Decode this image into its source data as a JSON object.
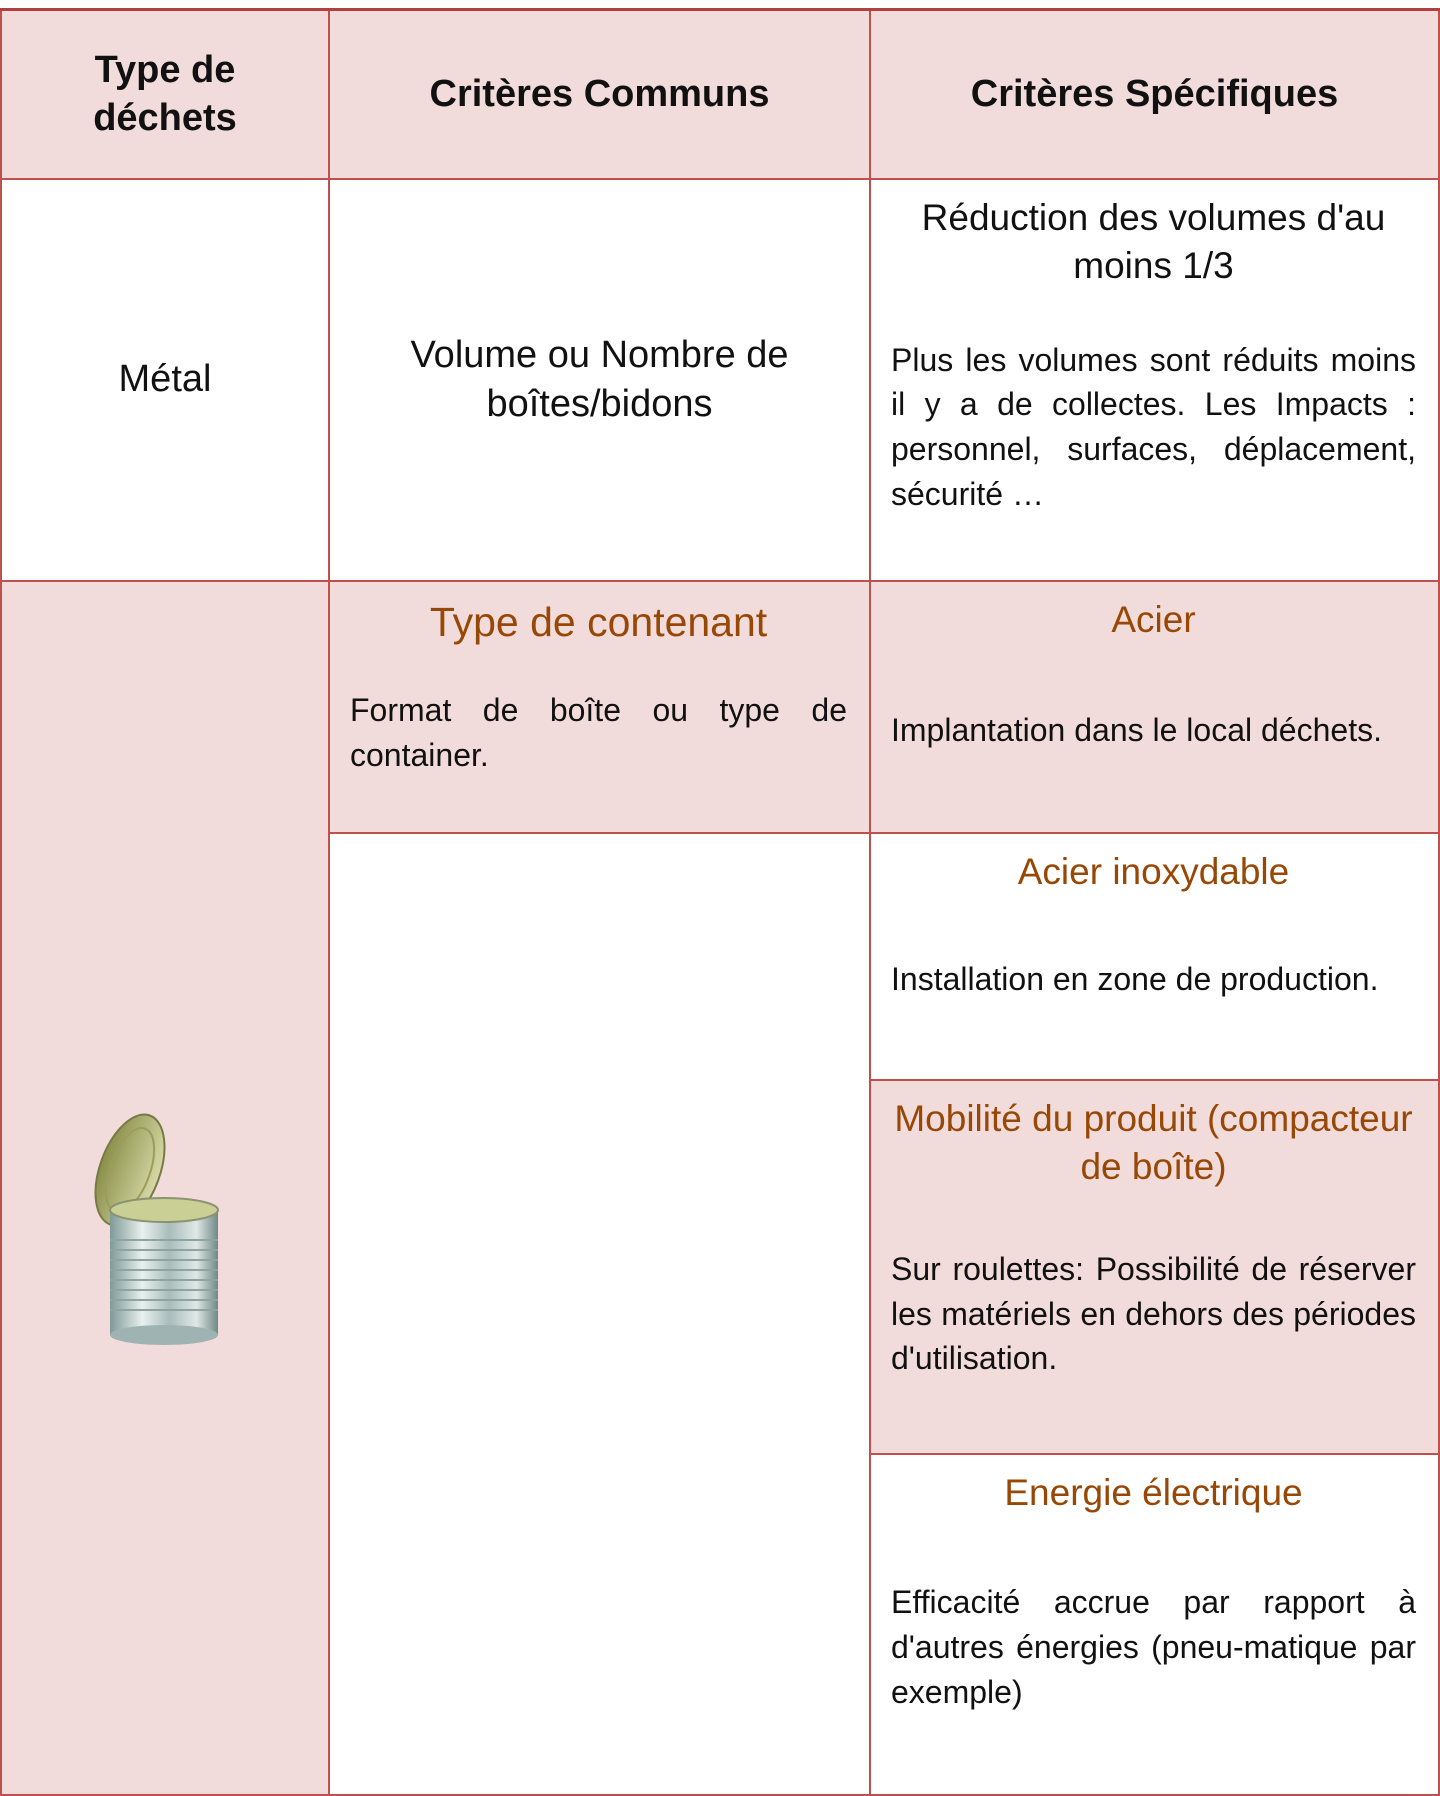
{
  "header": {
    "columns": [
      "Type de déchets",
      "Critères Communs",
      "Critères Spécifiques"
    ]
  },
  "rows": [
    {
      "type": "Métal",
      "common": "Volume ou  Nombre de boîtes/bidons",
      "specific": {
        "title": "Réduction des volumes d'au moins 1/3",
        "text": "Plus les volumes sont réduits moins il y a de collectes. Les Impacts : personnel, surfaces, déplacement, sécurité …"
      }
    }
  ],
  "container": {
    "common": {
      "title": "Type de contenant",
      "text": "Format de boîte ou type de container."
    },
    "specific": [
      {
        "title": "Acier",
        "text": "Implantation dans le local déchets."
      },
      {
        "title": "Acier inoxydable",
        "text": "Installation en zone de production."
      },
      {
        "title": "Mobilité du produit (compacteur de boîte)",
        "text": "Sur roulettes: Possibilité de réserver les matériels en dehors des périodes d'utilisation."
      },
      {
        "title": "Energie électrique",
        "text": "Efficacité accrue par rapport à d'autres énergies (pneu-matique par exemple)"
      }
    ]
  }
}
